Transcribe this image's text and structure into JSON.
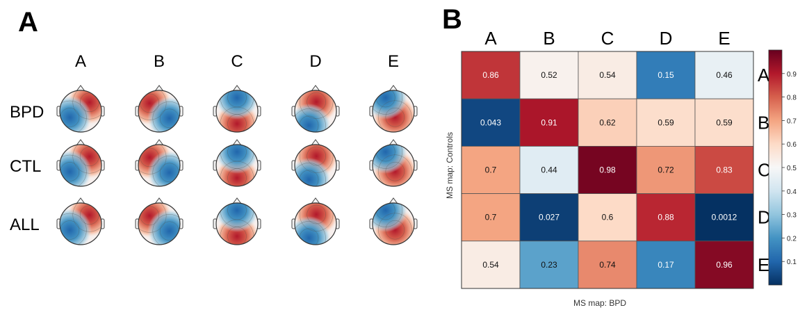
{
  "panel_a": {
    "label": "A",
    "columns": [
      "A",
      "B",
      "C",
      "D",
      "E"
    ],
    "rows": [
      "BPD",
      "CTL",
      "ALL"
    ]
  },
  "panel_b": {
    "label": "B"
  },
  "chart_data": {
    "type": "heatmap",
    "x_categories": [
      "A",
      "B",
      "C",
      "D",
      "E"
    ],
    "y_categories": [
      "A",
      "B",
      "C",
      "D",
      "E"
    ],
    "xlabel": "MS map: BPD",
    "ylabel": "MS map: Controls",
    "values": [
      [
        0.86,
        0.52,
        0.54,
        0.15,
        0.46
      ],
      [
        0.043,
        0.91,
        0.62,
        0.59,
        0.59
      ],
      [
        0.7,
        0.44,
        0.98,
        0.72,
        0.83
      ],
      [
        0.7,
        0.027,
        0.6,
        0.88,
        0.0012
      ],
      [
        0.54,
        0.23,
        0.74,
        0.17,
        0.96
      ]
    ],
    "value_labels": [
      [
        "0.86",
        "0.52",
        "0.54",
        "0.15",
        "0.46"
      ],
      [
        "0.043",
        "0.91",
        "0.62",
        "0.59",
        "0.59"
      ],
      [
        "0.7",
        "0.44",
        "0.98",
        "0.72",
        "0.83"
      ],
      [
        "0.7",
        "0.027",
        "0.6",
        "0.88",
        "0.0012"
      ],
      [
        "0.54",
        "0.23",
        "0.74",
        "0.17",
        "0.96"
      ]
    ],
    "colorbar_ticks": [
      "0.1",
      "0.2",
      "0.3",
      "0.4",
      "0.5",
      "0.6",
      "0.7",
      "0.8",
      "0.9"
    ],
    "colorbar_range": [
      0,
      1
    ],
    "colormap": "RdBu_r"
  }
}
